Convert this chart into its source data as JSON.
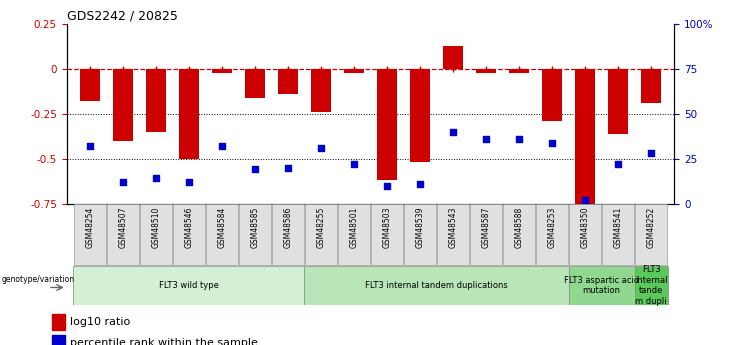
{
  "title": "GDS2242 / 20825",
  "samples": [
    "GSM48254",
    "GSM48507",
    "GSM48510",
    "GSM48546",
    "GSM48584",
    "GSM48585",
    "GSM48586",
    "GSM48255",
    "GSM48501",
    "GSM48503",
    "GSM48539",
    "GSM48543",
    "GSM48587",
    "GSM48588",
    "GSM48253",
    "GSM48350",
    "GSM48541",
    "GSM48252"
  ],
  "log10_ratio": [
    -0.18,
    -0.4,
    -0.35,
    -0.5,
    -0.02,
    -0.16,
    -0.14,
    -0.24,
    -0.02,
    -0.62,
    -0.52,
    0.13,
    -0.02,
    -0.02,
    -0.29,
    -0.75,
    -0.36,
    -0.19
  ],
  "percentile_rank": [
    32,
    12,
    14,
    12,
    32,
    19,
    20,
    31,
    22,
    10,
    11,
    40,
    36,
    36,
    34,
    2,
    22,
    28
  ],
  "groups": [
    {
      "label": "FLT3 wild type",
      "start": 0,
      "end": 6,
      "color": "#d4f0d4"
    },
    {
      "label": "FLT3 internal tandem duplications",
      "start": 7,
      "end": 14,
      "color": "#b8e6b8"
    },
    {
      "label": "FLT3 aspartic acid\nmutation",
      "start": 15,
      "end": 16,
      "color": "#90d890"
    },
    {
      "label": "FLT3\ninternal\ntande\nm dupli",
      "start": 17,
      "end": 17,
      "color": "#5ac85a"
    }
  ],
  "ylim_left": [
    -0.75,
    0.25
  ],
  "ylim_right": [
    0,
    100
  ],
  "yticks_left": [
    -0.75,
    -0.5,
    -0.25,
    0,
    0.25
  ],
  "ytick_labels_left": [
    "-0.75",
    "-0.5",
    "-0.25",
    "0",
    "0.25"
  ],
  "yticks_right": [
    0,
    25,
    50,
    75,
    100
  ],
  "ytick_labels_right": [
    "0",
    "25",
    "50",
    "75",
    "100%"
  ],
  "red_color": "#cc0000",
  "blue_color": "#0000cc",
  "legend_items": [
    "log10 ratio",
    "percentile rank within the sample"
  ],
  "bar_width": 0.6
}
